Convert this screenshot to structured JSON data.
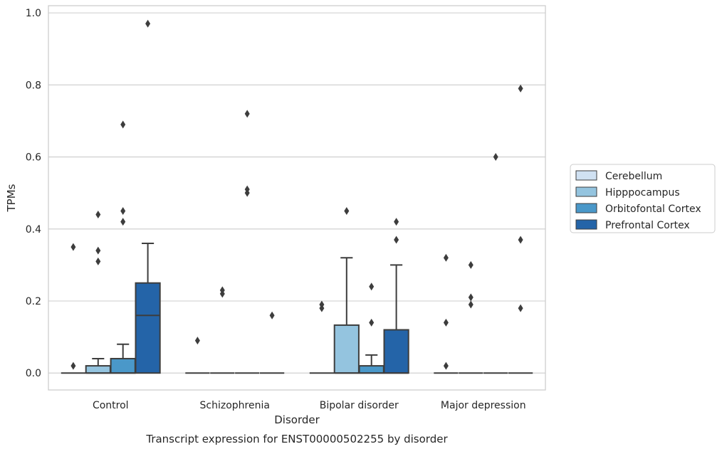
{
  "chart_data": {
    "type": "boxplot",
    "title": "",
    "caption": "Transcript expression for ENST00000502255 by disorder",
    "xlabel": "Disorder",
    "ylabel": "TPMs",
    "ylim": [
      -0.047,
      1.02
    ],
    "yticks": [
      "0.0",
      "0.2",
      "0.4",
      "0.6",
      "0.8",
      "1.0"
    ],
    "ytick_values": [
      0.0,
      0.2,
      0.4,
      0.6,
      0.8,
      1.0
    ],
    "grid": true,
    "legend_position": "right",
    "categories": [
      "Control",
      "Schizophrenia",
      "Bipolar disorder",
      "Major depression"
    ],
    "series": [
      {
        "name": "Cerebellum",
        "color": "#d0e1f2",
        "boxes": [
          {
            "q1": 0,
            "median": 0,
            "q3": 0,
            "whislo": 0,
            "whishi": 0,
            "fliers": [
              0.35,
              0.02
            ]
          },
          {
            "q1": 0,
            "median": 0,
            "q3": 0,
            "whislo": 0,
            "whishi": 0,
            "fliers": [
              0.09
            ]
          },
          {
            "q1": 0,
            "median": 0,
            "q3": 0,
            "whislo": 0,
            "whishi": 0,
            "fliers": [
              0.19,
              0.18
            ]
          },
          {
            "q1": 0,
            "median": 0,
            "q3": 0,
            "whislo": 0,
            "whishi": 0,
            "fliers": [
              0.32,
              0.14,
              0.02
            ]
          }
        ]
      },
      {
        "name": "Hipppocampus",
        "color": "#94c4df",
        "boxes": [
          {
            "q1": 0,
            "median": 0,
            "q3": 0.02,
            "whislo": 0,
            "whishi": 0.04,
            "fliers": [
              0.44,
              0.34,
              0.31
            ]
          },
          {
            "q1": 0,
            "median": 0,
            "q3": 0,
            "whislo": 0,
            "whishi": 0,
            "fliers": [
              0.23,
              0.22
            ]
          },
          {
            "q1": 0,
            "median": 0,
            "q3": 0.133,
            "whislo": 0,
            "whishi": 0.32,
            "fliers": [
              0.45
            ]
          },
          {
            "q1": 0,
            "median": 0,
            "q3": 0,
            "whislo": 0,
            "whishi": 0,
            "fliers": [
              0.3,
              0.21,
              0.19
            ]
          }
        ]
      },
      {
        "name": "Orbitofontal Cortex",
        "color": "#4a98c9",
        "boxes": [
          {
            "q1": 0,
            "median": 0,
            "q3": 0.04,
            "whislo": 0,
            "whishi": 0.08,
            "fliers": [
              0.69,
              0.45,
              0.42
            ]
          },
          {
            "q1": 0,
            "median": 0,
            "q3": 0,
            "whislo": 0,
            "whishi": 0,
            "fliers": [
              0.72,
              0.51,
              0.5
            ]
          },
          {
            "q1": 0,
            "median": 0,
            "q3": 0.02,
            "whislo": 0,
            "whishi": 0.05,
            "fliers": [
              0.24,
              0.14
            ]
          },
          {
            "q1": 0,
            "median": 0,
            "q3": 0,
            "whislo": 0,
            "whishi": 0,
            "fliers": [
              0.6
            ]
          }
        ]
      },
      {
        "name": "Prefrontal Cortex",
        "color": "#2464a8",
        "boxes": [
          {
            "q1": 0,
            "median": 0.16,
            "q3": 0.25,
            "whislo": 0,
            "whishi": 0.36,
            "fliers": [
              0.97
            ]
          },
          {
            "q1": 0,
            "median": 0,
            "q3": 0,
            "whislo": 0,
            "whishi": 0,
            "fliers": [
              0.16
            ]
          },
          {
            "q1": 0,
            "median": 0,
            "q3": 0.12,
            "whislo": 0,
            "whishi": 0.3,
            "fliers": [
              0.42,
              0.37
            ]
          },
          {
            "q1": 0,
            "median": 0,
            "q3": 0,
            "whislo": 0,
            "whishi": 0,
            "fliers": [
              0.79,
              0.37,
              0.18
            ]
          }
        ]
      }
    ]
  }
}
